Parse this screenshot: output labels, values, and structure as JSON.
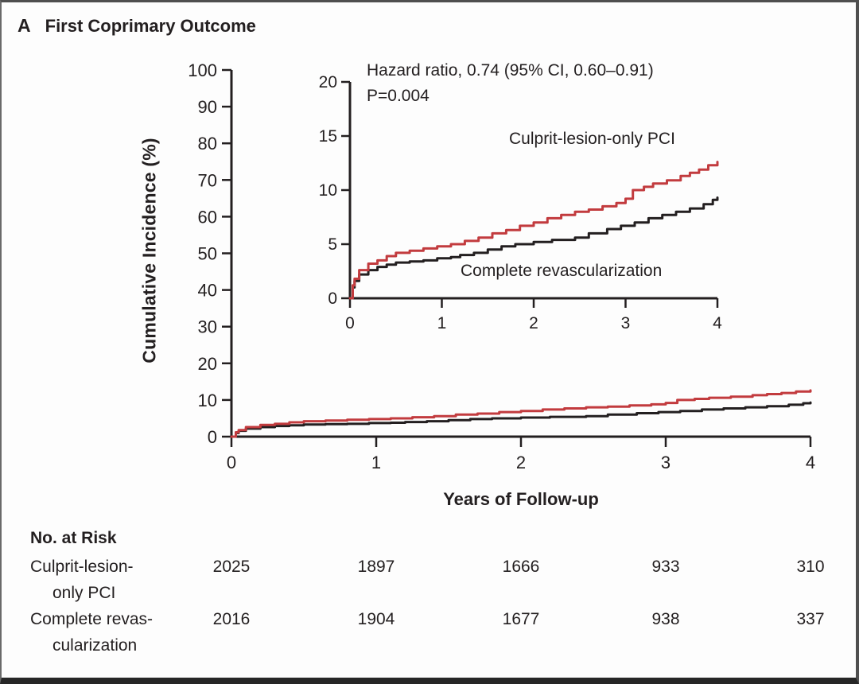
{
  "panel": {
    "letter": "A",
    "title": "First Coprimary Outcome"
  },
  "colors": {
    "culprit": "#c23b3e",
    "complete": "#231f20",
    "axis": "#231f20",
    "frame": "#4f4f4f",
    "bottom_bar": "#262626"
  },
  "chart_data": {
    "type": "line",
    "title": "First Coprimary Outcome",
    "xlabel": "Years of Follow-up",
    "ylabel": "Cumulative Incidence (%)",
    "annotations": {
      "hazard_ratio": "Hazard ratio, 0.74 (95% CI, 0.60–0.91)",
      "p_value": "P=0.004"
    },
    "main_axis": {
      "xlim": [
        0,
        4
      ],
      "ylim": [
        0,
        100
      ],
      "xticks": [
        0,
        1,
        2,
        3,
        4
      ],
      "yticks": [
        0,
        10,
        20,
        30,
        40,
        50,
        60,
        70,
        80,
        90,
        100
      ],
      "grid": false
    },
    "inset_axis": {
      "xlim": [
        0,
        4
      ],
      "ylim": [
        0,
        20
      ],
      "xticks": [
        0,
        1,
        2,
        3,
        4
      ],
      "yticks": [
        0,
        5,
        10,
        15,
        20
      ],
      "grid": false
    },
    "legend_position": "inline-labels",
    "series": [
      {
        "name": "Culprit-lesion-only PCI",
        "color": "#c23b3e",
        "points": [
          [
            0,
            0
          ],
          [
            0.03,
            1.2
          ],
          [
            0.05,
            1.8
          ],
          [
            0.1,
            2.6
          ],
          [
            0.2,
            3.2
          ],
          [
            0.3,
            3.5
          ],
          [
            0.4,
            3.9
          ],
          [
            0.5,
            4.2
          ],
          [
            0.65,
            4.4
          ],
          [
            0.8,
            4.6
          ],
          [
            0.95,
            4.8
          ],
          [
            1.1,
            5.0
          ],
          [
            1.25,
            5.3
          ],
          [
            1.4,
            5.6
          ],
          [
            1.55,
            6.0
          ],
          [
            1.7,
            6.3
          ],
          [
            1.85,
            6.7
          ],
          [
            2.0,
            7.0
          ],
          [
            2.15,
            7.4
          ],
          [
            2.3,
            7.7
          ],
          [
            2.45,
            8.0
          ],
          [
            2.6,
            8.2
          ],
          [
            2.75,
            8.5
          ],
          [
            2.9,
            8.8
          ],
          [
            3.0,
            9.2
          ],
          [
            3.08,
            10.0
          ],
          [
            3.2,
            10.3
          ],
          [
            3.3,
            10.6
          ],
          [
            3.45,
            10.9
          ],
          [
            3.6,
            11.3
          ],
          [
            3.7,
            11.6
          ],
          [
            3.8,
            11.9
          ],
          [
            3.9,
            12.3
          ],
          [
            4.0,
            12.6
          ]
        ]
      },
      {
        "name": "Complete revascularization",
        "color": "#231f20",
        "points": [
          [
            0,
            0
          ],
          [
            0.03,
            1.0
          ],
          [
            0.05,
            1.6
          ],
          [
            0.1,
            2.2
          ],
          [
            0.2,
            2.6
          ],
          [
            0.3,
            2.9
          ],
          [
            0.4,
            3.1
          ],
          [
            0.5,
            3.3
          ],
          [
            0.65,
            3.4
          ],
          [
            0.8,
            3.5
          ],
          [
            0.95,
            3.7
          ],
          [
            1.1,
            3.8
          ],
          [
            1.2,
            4.0
          ],
          [
            1.35,
            4.2
          ],
          [
            1.5,
            4.5
          ],
          [
            1.65,
            4.8
          ],
          [
            1.8,
            5.0
          ],
          [
            2.0,
            5.2
          ],
          [
            2.2,
            5.4
          ],
          [
            2.45,
            5.6
          ],
          [
            2.6,
            6.0
          ],
          [
            2.8,
            6.4
          ],
          [
            2.95,
            6.7
          ],
          [
            3.1,
            7.0
          ],
          [
            3.25,
            7.4
          ],
          [
            3.4,
            7.7
          ],
          [
            3.55,
            8.0
          ],
          [
            3.7,
            8.3
          ],
          [
            3.85,
            8.7
          ],
          [
            3.95,
            9.1
          ],
          [
            4.0,
            9.3
          ]
        ]
      }
    ]
  },
  "risk_table": {
    "header": "No. at Risk",
    "timepoints": [
      "0",
      "1",
      "2",
      "3",
      "4"
    ],
    "rows": [
      {
        "label_lines": [
          "Culprit-lesion-",
          "only PCI"
        ],
        "values": [
          "2025",
          "1897",
          "1666",
          "933",
          "310"
        ]
      },
      {
        "label_lines": [
          "Complete revas-",
          "cularization"
        ],
        "values": [
          "2016",
          "1904",
          "1677",
          "938",
          "337"
        ]
      }
    ]
  }
}
